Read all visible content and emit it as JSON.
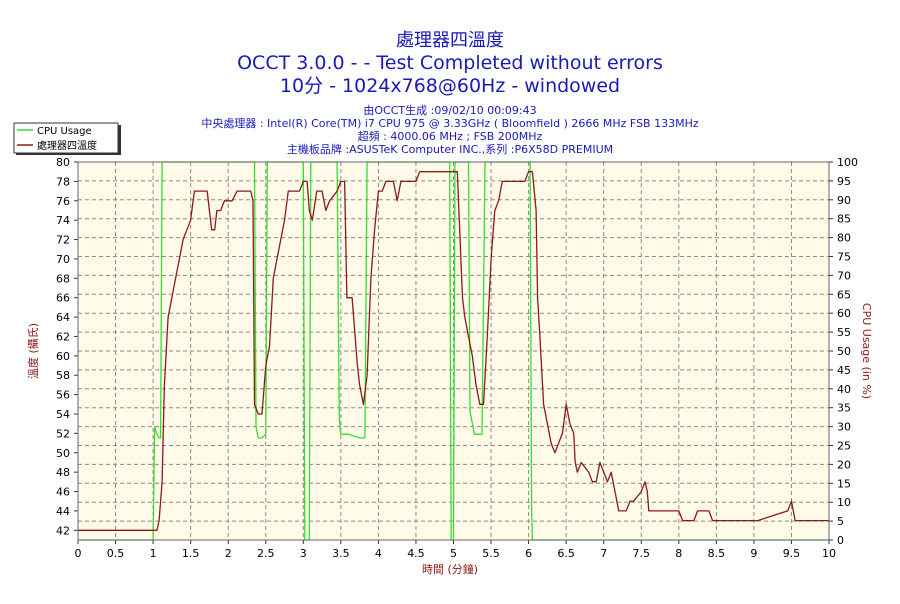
{
  "chart_data": {
    "type": "line",
    "title": "處理器四溫度",
    "subtitle": "OCCT 3.0.0 -  - Test Completed without errors",
    "subtitle2": "10分 - 1024x768@60Hz - windowed",
    "info": [
      "由OCCT生成 :09/02/10 00:09:43",
      "中央處理器 : Intel(R) Core(TM) i7 CPU 975 @ 3.33GHz ( Bloomfield ) 2666 MHz FSB 133MHz",
      "超頻 : 4000.06 MHz ; FSB 200MHz",
      "主機板品牌 :ASUSTeK Computer INC.,系列 :P6X58D PREMIUM"
    ],
    "xlabel": "時間 (分鐘)",
    "ylabel_left": "溫度 (攝氏)",
    "ylabel_right": "CPU Usage (in %)",
    "xlim": [
      0,
      10
    ],
    "ylim_left": [
      41,
      80
    ],
    "ylim_right": [
      0,
      100
    ],
    "x_ticks": [
      "0",
      "0.5",
      "1",
      "1.5",
      "2",
      "2.5",
      "3",
      "3.5",
      "4",
      "4.5",
      "5",
      "5.5",
      "6",
      "6.5",
      "7",
      "7.5",
      "8",
      "8.5",
      "9",
      "9.5",
      "10"
    ],
    "y_ticks_left": [
      "42",
      "44",
      "46",
      "48",
      "50",
      "52",
      "54",
      "56",
      "58",
      "60",
      "62",
      "64",
      "66",
      "68",
      "70",
      "72",
      "74",
      "76",
      "78",
      "80"
    ],
    "y_ticks_right": [
      "0",
      "5",
      "10",
      "15",
      "20",
      "25",
      "30",
      "35",
      "40",
      "45",
      "50",
      "55",
      "60",
      "65",
      "70",
      "75",
      "80",
      "85",
      "90",
      "95",
      "100"
    ],
    "grid": true,
    "legend_position": "top-left",
    "series": [
      {
        "name": "CPU Usage",
        "axis": "right",
        "color": "#33dd33",
        "points": [
          [
            0,
            0
          ],
          [
            1.0,
            0
          ],
          [
            1.02,
            30
          ],
          [
            1.05,
            28
          ],
          [
            1.08,
            27
          ],
          [
            1.1,
            27
          ],
          [
            1.12,
            100
          ],
          [
            1.18,
            100
          ],
          [
            2.35,
            100
          ],
          [
            2.37,
            30
          ],
          [
            2.4,
            27
          ],
          [
            2.45,
            27
          ],
          [
            2.5,
            28
          ],
          [
            2.52,
            100
          ],
          [
            3.0,
            100
          ],
          [
            3.02,
            0
          ],
          [
            3.08,
            0
          ],
          [
            3.1,
            100
          ],
          [
            3.45,
            100
          ],
          [
            3.48,
            32
          ],
          [
            3.5,
            28
          ],
          [
            3.6,
            28
          ],
          [
            3.75,
            27
          ],
          [
            3.82,
            27
          ],
          [
            3.85,
            100
          ],
          [
            4.95,
            100
          ],
          [
            4.97,
            0
          ],
          [
            5.0,
            0
          ],
          [
            5.02,
            100
          ],
          [
            5.2,
            100
          ],
          [
            5.22,
            34
          ],
          [
            5.28,
            28
          ],
          [
            5.38,
            28
          ],
          [
            5.42,
            100
          ],
          [
            6.02,
            100
          ],
          [
            6.04,
            8
          ],
          [
            6.05,
            0
          ],
          [
            10,
            0
          ]
        ]
      },
      {
        "name": "處理器四溫度",
        "axis": "left",
        "color": "#8b1a1a",
        "points": [
          [
            0,
            42
          ],
          [
            1.05,
            42
          ],
          [
            1.08,
            43
          ],
          [
            1.12,
            47
          ],
          [
            1.15,
            57
          ],
          [
            1.2,
            64
          ],
          [
            1.25,
            66
          ],
          [
            1.3,
            68
          ],
          [
            1.35,
            70
          ],
          [
            1.4,
            72
          ],
          [
            1.45,
            73
          ],
          [
            1.5,
            74
          ],
          [
            1.55,
            77
          ],
          [
            1.72,
            77
          ],
          [
            1.75,
            75
          ],
          [
            1.78,
            73
          ],
          [
            1.82,
            73
          ],
          [
            1.85,
            75
          ],
          [
            1.9,
            75
          ],
          [
            1.95,
            76
          ],
          [
            2.05,
            76
          ],
          [
            2.12,
            77
          ],
          [
            2.3,
            77
          ],
          [
            2.33,
            76
          ],
          [
            2.35,
            55
          ],
          [
            2.4,
            54
          ],
          [
            2.45,
            54
          ],
          [
            2.5,
            59
          ],
          [
            2.55,
            61
          ],
          [
            2.6,
            68
          ],
          [
            2.65,
            70
          ],
          [
            2.7,
            72
          ],
          [
            2.75,
            74
          ],
          [
            2.8,
            77
          ],
          [
            2.95,
            77
          ],
          [
            3.0,
            78
          ],
          [
            3.05,
            78
          ],
          [
            3.08,
            75
          ],
          [
            3.12,
            74
          ],
          [
            3.18,
            77
          ],
          [
            3.25,
            77
          ],
          [
            3.3,
            75
          ],
          [
            3.35,
            76
          ],
          [
            3.45,
            77
          ],
          [
            3.5,
            78
          ],
          [
            3.55,
            78
          ],
          [
            3.58,
            66
          ],
          [
            3.65,
            66
          ],
          [
            3.72,
            59
          ],
          [
            3.75,
            57
          ],
          [
            3.8,
            55
          ],
          [
            3.85,
            58
          ],
          [
            3.9,
            68
          ],
          [
            3.95,
            73
          ],
          [
            4.0,
            77
          ],
          [
            4.05,
            77
          ],
          [
            4.1,
            78
          ],
          [
            4.2,
            78
          ],
          [
            4.25,
            76
          ],
          [
            4.3,
            78
          ],
          [
            4.5,
            78
          ],
          [
            4.55,
            79
          ],
          [
            4.95,
            79
          ],
          [
            5.0,
            79
          ],
          [
            5.05,
            79
          ],
          [
            5.12,
            66
          ],
          [
            5.15,
            64
          ],
          [
            5.2,
            62
          ],
          [
            5.25,
            60
          ],
          [
            5.3,
            57
          ],
          [
            5.35,
            55
          ],
          [
            5.4,
            55
          ],
          [
            5.45,
            62
          ],
          [
            5.5,
            70
          ],
          [
            5.55,
            75
          ],
          [
            5.6,
            76
          ],
          [
            5.65,
            78
          ],
          [
            5.95,
            78
          ],
          [
            6.0,
            79
          ],
          [
            6.05,
            79
          ],
          [
            6.1,
            75
          ],
          [
            6.12,
            66
          ],
          [
            6.15,
            62
          ],
          [
            6.2,
            55
          ],
          [
            6.25,
            53
          ],
          [
            6.3,
            51
          ],
          [
            6.35,
            50
          ],
          [
            6.4,
            51
          ],
          [
            6.45,
            52
          ],
          [
            6.5,
            55
          ],
          [
            6.55,
            53
          ],
          [
            6.6,
            52
          ],
          [
            6.62,
            49
          ],
          [
            6.65,
            48
          ],
          [
            6.7,
            49
          ],
          [
            6.8,
            48
          ],
          [
            6.85,
            47
          ],
          [
            6.9,
            47
          ],
          [
            6.95,
            49
          ],
          [
            7.0,
            48
          ],
          [
            7.05,
            47
          ],
          [
            7.1,
            48
          ],
          [
            7.15,
            46
          ],
          [
            7.2,
            44
          ],
          [
            7.3,
            44
          ],
          [
            7.35,
            45
          ],
          [
            7.4,
            45
          ],
          [
            7.5,
            46
          ],
          [
            7.55,
            47
          ],
          [
            7.58,
            46
          ],
          [
            7.6,
            44
          ],
          [
            8.0,
            44
          ],
          [
            8.05,
            43
          ],
          [
            8.2,
            43
          ],
          [
            8.25,
            44
          ],
          [
            8.4,
            44
          ],
          [
            8.45,
            43
          ],
          [
            9.0,
            43
          ],
          [
            9.05,
            43
          ],
          [
            9.45,
            44
          ],
          [
            9.5,
            45
          ],
          [
            9.55,
            43
          ],
          [
            10,
            43
          ]
        ]
      }
    ]
  }
}
